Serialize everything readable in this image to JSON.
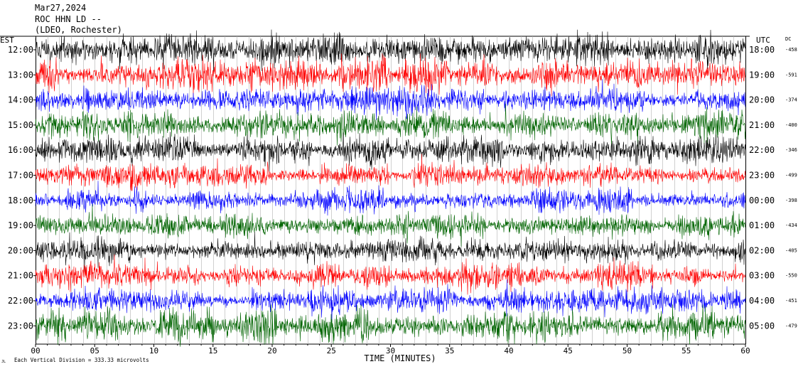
{
  "header": {
    "date": "Mar27,2024",
    "station": "ROC HHN LD --",
    "network": "(LDEO, Rochester)"
  },
  "footer": {
    "scale_note": "Each Vertical Division =  333.33 microvolts",
    "corner_mark": "JL"
  },
  "chart_data": {
    "type": "line",
    "title": "",
    "xlabel": "TIME (MINUTES)",
    "left_axis_label": "EST",
    "right_axis_label": "UTC",
    "dc_label": "DC",
    "xlim": [
      0,
      60
    ],
    "x_ticks": [
      0,
      5,
      10,
      15,
      20,
      25,
      30,
      35,
      40,
      45,
      50,
      55,
      60
    ],
    "x_tick_labels": [
      "00",
      "05",
      "10",
      "15",
      "20",
      "25",
      "30",
      "35",
      "40",
      "45",
      "50",
      "55",
      "60"
    ],
    "grid": true,
    "trace_colors": [
      "#000000",
      "#ff0000",
      "#0000ff",
      "#006400"
    ],
    "traces": [
      {
        "est": "12:00",
        "utc": "18:00",
        "dc": "-458",
        "color": "#000000",
        "amplitude": 1.1
      },
      {
        "est": "13:00",
        "utc": "19:00",
        "dc": "-591",
        "color": "#ff0000",
        "amplitude": 1.2
      },
      {
        "est": "14:00",
        "utc": "20:00",
        "dc": "-374",
        "color": "#0000ff",
        "amplitude": 0.9
      },
      {
        "est": "15:00",
        "utc": "21:00",
        "dc": "-400",
        "color": "#006400",
        "amplitude": 1.1
      },
      {
        "est": "16:00",
        "utc": "22:00",
        "dc": "-346",
        "color": "#000000",
        "amplitude": 1.0
      },
      {
        "est": "17:00",
        "utc": "23:00",
        "dc": "-499",
        "color": "#ff0000",
        "amplitude": 0.8
      },
      {
        "est": "18:00",
        "utc": "00:00",
        "dc": "-398",
        "color": "#0000ff",
        "amplitude": 0.8
      },
      {
        "est": "19:00",
        "utc": "01:00",
        "dc": "-434",
        "color": "#006400",
        "amplitude": 0.9
      },
      {
        "est": "20:00",
        "utc": "02:00",
        "dc": "-405",
        "color": "#000000",
        "amplitude": 0.9
      },
      {
        "est": "21:00",
        "utc": "03:00",
        "dc": "-550",
        "color": "#ff0000",
        "amplitude": 0.9
      },
      {
        "est": "22:00",
        "utc": "04:00",
        "dc": "-451",
        "color": "#0000ff",
        "amplitude": 0.9
      },
      {
        "est": "23:00",
        "utc": "05:00",
        "dc": "-479",
        "color": "#006400",
        "amplitude": 1.2
      }
    ]
  }
}
